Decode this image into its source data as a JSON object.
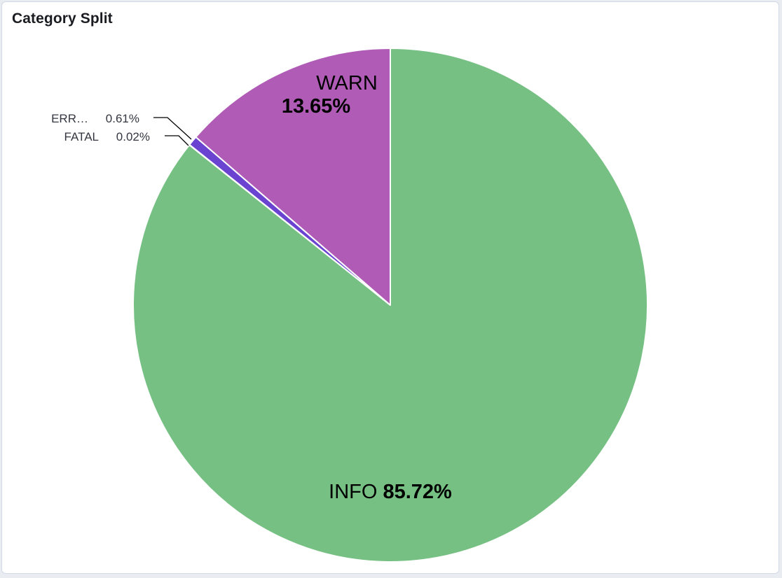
{
  "panel": {
    "title": "Category Split"
  },
  "chart_data": {
    "type": "pie",
    "title": "Category Split",
    "start_angle_deg": 0,
    "direction": "clockwise",
    "slices": [
      {
        "label": "INFO",
        "display_label": "INFO",
        "value": 85.72,
        "value_label": "85.72%",
        "color": "#76c083"
      },
      {
        "label": "FATAL",
        "display_label": "FATAL",
        "value": 0.02,
        "value_label": "0.02%",
        "color": "#e7664c"
      },
      {
        "label": "ERROR",
        "display_label": "ERR…",
        "value": 0.61,
        "value_label": "0.61%",
        "color": "#6a43d1"
      },
      {
        "label": "WARN",
        "display_label": "WARN",
        "value": 13.65,
        "value_label": "13.65%",
        "color": "#b05cb7"
      }
    ],
    "legend": "none"
  }
}
